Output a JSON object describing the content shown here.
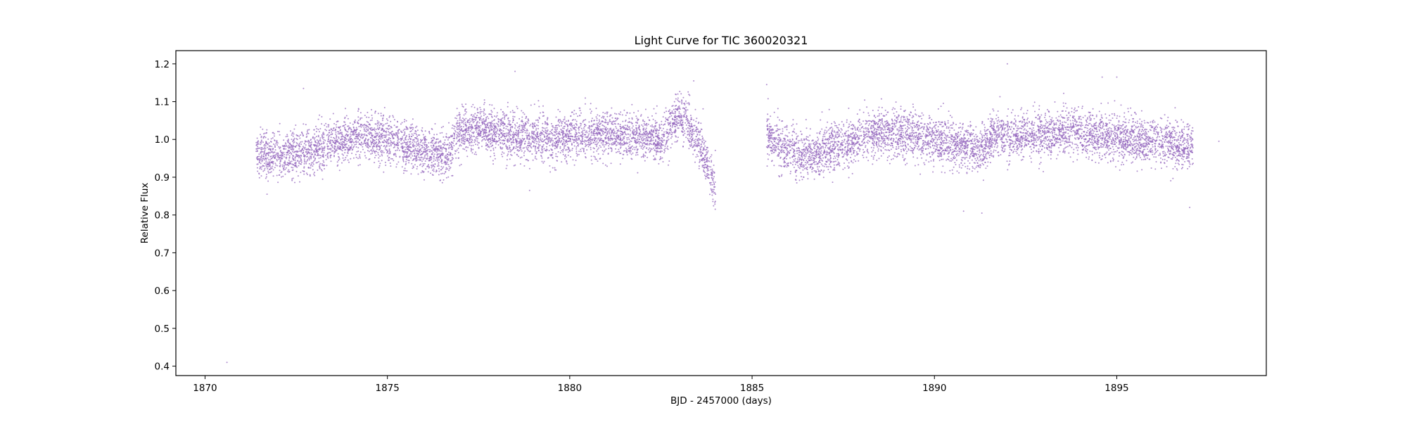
{
  "chart_data": {
    "type": "scatter",
    "title": "Light Curve for TIC 360020321",
    "xlabel": "BJD - 2457000 (days)",
    "ylabel": "Relative Flux",
    "xlim": [
      1869.2,
      1899.1
    ],
    "ylim": [
      0.375,
      1.235
    ],
    "xticks": [
      1870,
      1875,
      1880,
      1885,
      1890,
      1895
    ],
    "yticks": [
      0.4,
      0.5,
      0.6,
      0.7,
      0.8,
      0.9,
      1.0,
      1.1,
      1.2
    ],
    "xtick_labels": [
      "1870",
      "1875",
      "1880",
      "1885",
      "1890",
      "1895"
    ],
    "ytick_labels": [
      "0.4",
      "0.5",
      "0.6",
      "0.7",
      "0.8",
      "0.9",
      "1.0",
      "1.1",
      "1.2"
    ],
    "grid": false,
    "marker_color": "#9467bd",
    "segments": [
      {
        "x_range": [
          1871.4,
          1884.0
        ],
        "trend_x": [
          1871.4,
          1872.0,
          1872.8,
          1873.5,
          1874.3,
          1875.0,
          1875.8,
          1876.7,
          1876.9,
          1877.5,
          1878.5,
          1879.5,
          1880.5,
          1881.5,
          1882.5,
          1883.0,
          1883.4,
          1883.8,
          1884.0
        ],
        "trend_y": [
          0.96,
          0.955,
          0.97,
          0.99,
          1.01,
          1.0,
          0.975,
          0.955,
          1.02,
          1.03,
          1.01,
          1.0,
          1.015,
          1.01,
          1.0,
          1.065,
          1.02,
          0.93,
          0.86
        ],
        "scatter": 0.03
      },
      {
        "x_range": [
          1885.4,
          1897.1
        ],
        "trend_x": [
          1885.4,
          1885.7,
          1886.5,
          1887.5,
          1888.5,
          1889.5,
          1890.5,
          1891.3,
          1891.6,
          1892.5,
          1893.5,
          1894.5,
          1895.5,
          1896.5,
          1897.1
        ],
        "trend_y": [
          1.03,
          0.98,
          0.955,
          0.99,
          1.02,
          1.01,
          0.99,
          0.97,
          1.01,
          1.01,
          1.02,
          1.01,
          1.0,
          0.99,
          0.975
        ],
        "scatter": 0.03
      }
    ],
    "outliers": [
      {
        "x": 1870.6,
        "y": 0.41
      },
      {
        "x": 1878.5,
        "y": 1.18
      },
      {
        "x": 1892.0,
        "y": 1.2
      },
      {
        "x": 1894.6,
        "y": 1.165
      },
      {
        "x": 1895.0,
        "y": 1.165
      },
      {
        "x": 1897.8,
        "y": 0.995
      },
      {
        "x": 1872.7,
        "y": 1.135
      },
      {
        "x": 1883.4,
        "y": 1.155
      },
      {
        "x": 1890.8,
        "y": 0.81
      },
      {
        "x": 1891.3,
        "y": 0.805
      },
      {
        "x": 1897.0,
        "y": 0.82
      },
      {
        "x": 1885.4,
        "y": 1.145
      },
      {
        "x": 1878.9,
        "y": 0.865
      },
      {
        "x": 1871.7,
        "y": 0.855
      }
    ]
  }
}
